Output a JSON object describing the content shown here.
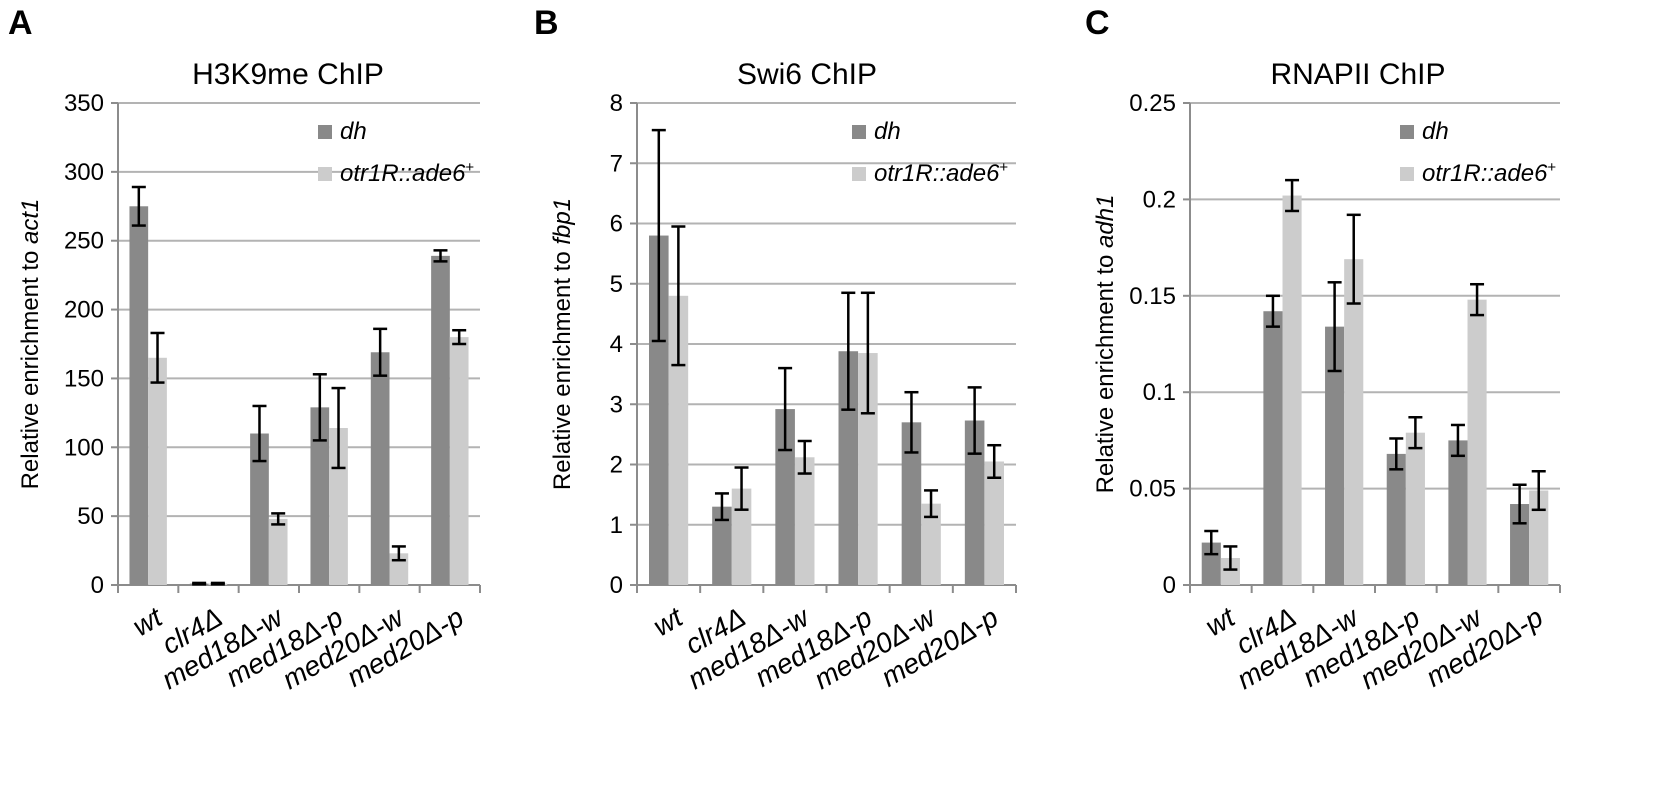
{
  "chart_data": [
    {
      "panel": "A",
      "type": "bar",
      "title": "H3K9me ChIP",
      "ylabel_prefix": "Relative  enrichment to ",
      "ylabel_gene": "act1",
      "ylim": [
        0,
        350
      ],
      "yticks": [
        0,
        50,
        100,
        150,
        200,
        250,
        300,
        350
      ],
      "ytick_labels": [
        "0",
        "50",
        "100",
        "150",
        "200",
        "250",
        "300",
        "350"
      ],
      "grid": true,
      "legend_placement": "top-right",
      "categories": [
        "wt",
        "clr4Δ",
        "med18Δ-w",
        "med18Δ-p",
        "med20Δ-w",
        "med20Δ-p"
      ],
      "series": [
        {
          "name": "dh",
          "color": "#898989",
          "values": [
            275,
            1,
            110,
            129,
            169,
            239
          ],
          "errors": [
            14,
            0.5,
            20,
            24,
            17,
            4
          ]
        },
        {
          "name": "otr1R::ade6",
          "name_sup": "+",
          "color": "#cccccc",
          "values": [
            165,
            1,
            48,
            114,
            23,
            180
          ],
          "errors": [
            18,
            0.5,
            4,
            29,
            5,
            5
          ]
        }
      ]
    },
    {
      "panel": "B",
      "type": "bar",
      "title": "Swi6 ChIP",
      "ylabel_prefix": "Relative enrichment to ",
      "ylabel_gene": "fbp1",
      "ylim": [
        0,
        8
      ],
      "yticks": [
        0,
        1,
        2,
        3,
        4,
        5,
        6,
        7,
        8
      ],
      "ytick_labels": [
        "0",
        "1",
        "2",
        "3",
        "4",
        "5",
        "6",
        "7",
        "8"
      ],
      "grid": true,
      "legend_placement": "top-right",
      "categories": [
        "wt",
        "clr4Δ",
        "med18Δ-w",
        "med18Δ-p",
        "med20Δ-w",
        "med20Δ-p"
      ],
      "series": [
        {
          "name": "dh",
          "color": "#898989",
          "values": [
            5.8,
            1.3,
            2.92,
            3.88,
            2.7,
            2.73
          ],
          "errors": [
            1.75,
            0.22,
            0.68,
            0.97,
            0.5,
            0.55
          ]
        },
        {
          "name": "otr1R::ade6",
          "name_sup": "+",
          "color": "#cccccc",
          "values": [
            4.8,
            1.6,
            2.12,
            3.85,
            1.35,
            2.05
          ],
          "errors": [
            1.15,
            0.35,
            0.27,
            1.0,
            0.22,
            0.27
          ]
        }
      ]
    },
    {
      "panel": "C",
      "type": "bar",
      "title": "RNAPII ChIP",
      "ylabel_prefix": "Relative enrichment to ",
      "ylabel_gene": "adh1",
      "ylim": [
        0,
        0.25
      ],
      "yticks": [
        0,
        0.05,
        0.1,
        0.15,
        0.2,
        0.25
      ],
      "ytick_labels": [
        "0",
        "0.05",
        "0.1",
        "0.15",
        "0.2",
        "0.25"
      ],
      "grid": true,
      "legend_placement": "top-right",
      "categories": [
        "wt",
        "clr4Δ",
        "med18Δ-w",
        "med18Δ-p",
        "med20Δ-w",
        "med20Δ-p"
      ],
      "series": [
        {
          "name": "dh",
          "color": "#898989",
          "values": [
            0.022,
            0.142,
            0.134,
            0.068,
            0.075,
            0.042
          ],
          "errors": [
            0.006,
            0.008,
            0.023,
            0.008,
            0.008,
            0.01
          ]
        },
        {
          "name": "otr1R::ade6",
          "name_sup": "+",
          "color": "#cccccc",
          "values": [
            0.014,
            0.202,
            0.169,
            0.079,
            0.148,
            0.049
          ],
          "errors": [
            0.006,
            0.008,
            0.023,
            0.008,
            0.008,
            0.01
          ]
        }
      ]
    }
  ]
}
